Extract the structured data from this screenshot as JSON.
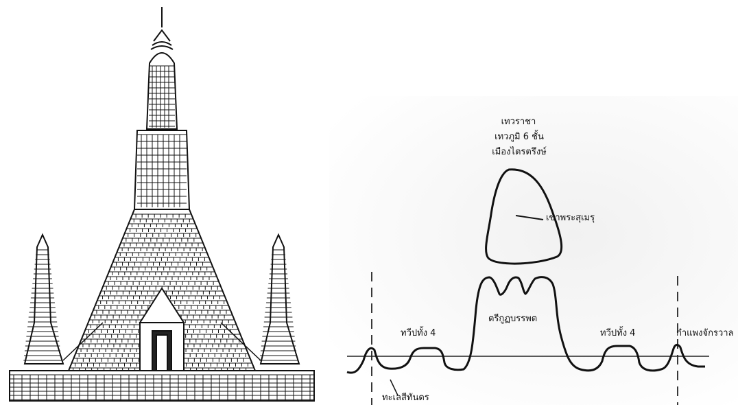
{
  "labels": {
    "heaven_line1": "เทวราชา",
    "heaven_line2": "เทวภูมิ 6 ชั้น",
    "heaven_line3": "เมืองไตรตรึงษ์",
    "meru": "เขาพระสุเมรุ",
    "trikut": "ตรีกูฏบรรพต",
    "continents_left": "ทวีปทั้ง 4",
    "continents_right": "ทวีปทั้ง 4",
    "cosmic_wall": "กำแพงจักรวาล",
    "sea": "ทะเลสีทันดร"
  },
  "colors": {
    "ink": "#111111",
    "line": "#222222"
  },
  "icons": {
    "temple": "prang-elevation-drawing"
  }
}
